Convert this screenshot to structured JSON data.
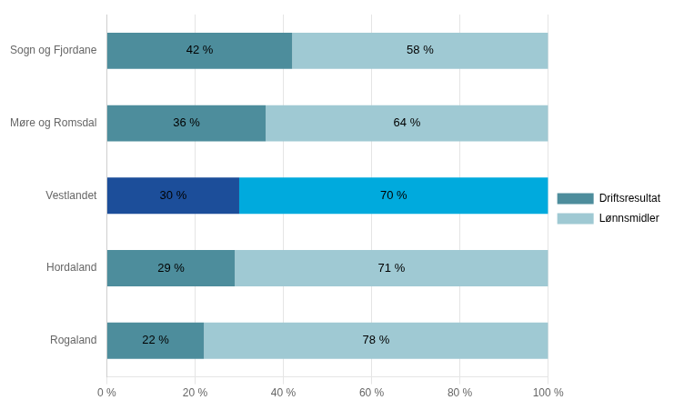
{
  "chart_data": {
    "type": "bar",
    "orientation": "horizontal",
    "stacked": true,
    "categories": [
      "Rogaland",
      "Hordaland",
      "Vestlandet",
      "Møre og Romsdal",
      "Sogn og Fjordane"
    ],
    "series": [
      {
        "name": "Driftsresultat",
        "color": "#4d8d9c",
        "colors": [
          "#4d8d9c",
          "#4d8d9c",
          "#1c4e9a",
          "#4d8d9c",
          "#4d8d9c"
        ],
        "values": [
          22,
          29,
          30,
          36,
          42
        ],
        "value_labels": [
          "22 %",
          "29 %",
          "30 %",
          "36 %",
          "42 %"
        ]
      },
      {
        "name": "Lønnsmidler",
        "color": "#9fc9d3",
        "colors": [
          "#9fc9d3",
          "#9fc9d3",
          "#00aadd",
          "#9fc9d3",
          "#9fc9d3"
        ],
        "values": [
          78,
          71,
          70,
          64,
          58
        ],
        "value_labels": [
          "78 %",
          "71 %",
          "70 %",
          "64 %",
          "58 %"
        ]
      }
    ],
    "xlim": [
      0,
      100
    ],
    "xticks": [
      {
        "value": 0,
        "label": "0 %"
      },
      {
        "value": 20,
        "label": "20 %"
      },
      {
        "value": 40,
        "label": "40 %"
      },
      {
        "value": 60,
        "label": "60 %"
      },
      {
        "value": 80,
        "label": "80 %"
      },
      {
        "value": 100,
        "label": "100 %"
      }
    ],
    "grid": true,
    "legend": "right",
    "data_labels": true
  }
}
